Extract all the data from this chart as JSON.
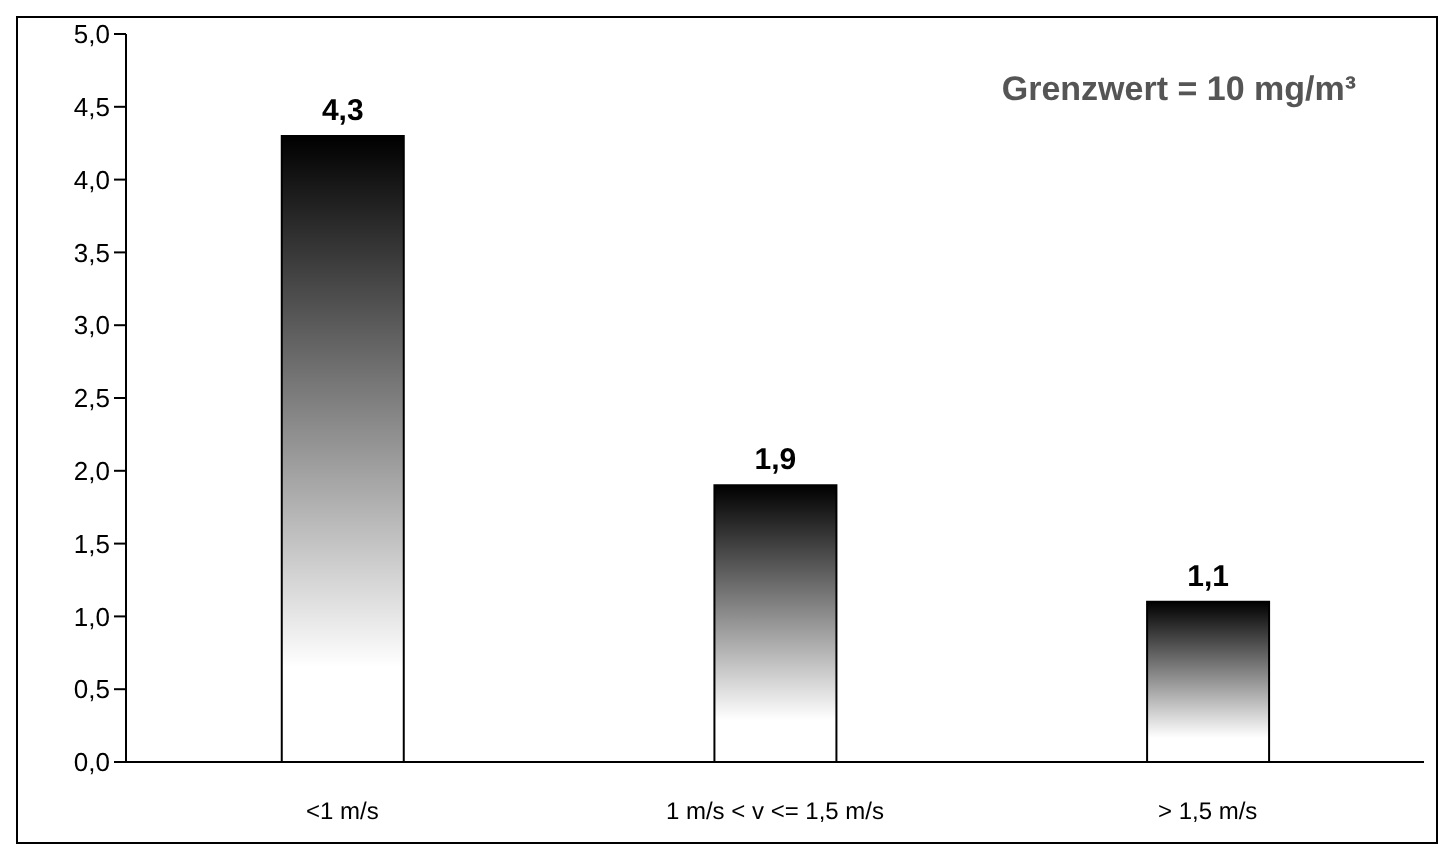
{
  "chart_data": {
    "type": "bar",
    "categories": [
      "<1 m/s",
      "1 m/s < v <= 1,5 m/s",
      "> 1,5 m/s"
    ],
    "values": [
      4.3,
      1.9,
      1.1
    ],
    "value_labels": [
      "4,3",
      "1,9",
      "1,1"
    ],
    "color": "#000000",
    "ylim": [
      0,
      5
    ],
    "yticks": [
      {
        "value": 0,
        "label": "0,0"
      },
      {
        "value": 0.5,
        "label": "0,5"
      },
      {
        "value": 1,
        "label": "1,0"
      },
      {
        "value": 1.5,
        "label": "1,5"
      },
      {
        "value": 2,
        "label": "2,0"
      },
      {
        "value": 2.5,
        "label": "2,5"
      },
      {
        "value": 3,
        "label": "3,0"
      },
      {
        "value": 3.5,
        "label": "3,5"
      },
      {
        "value": 4,
        "label": "4,0"
      },
      {
        "value": 4.5,
        "label": "4,5"
      },
      {
        "value": 5,
        "label": "5,0"
      }
    ],
    "annotations": [
      "Grenzwert = 10 mg/m³"
    ],
    "grid": false,
    "legend": false
  }
}
